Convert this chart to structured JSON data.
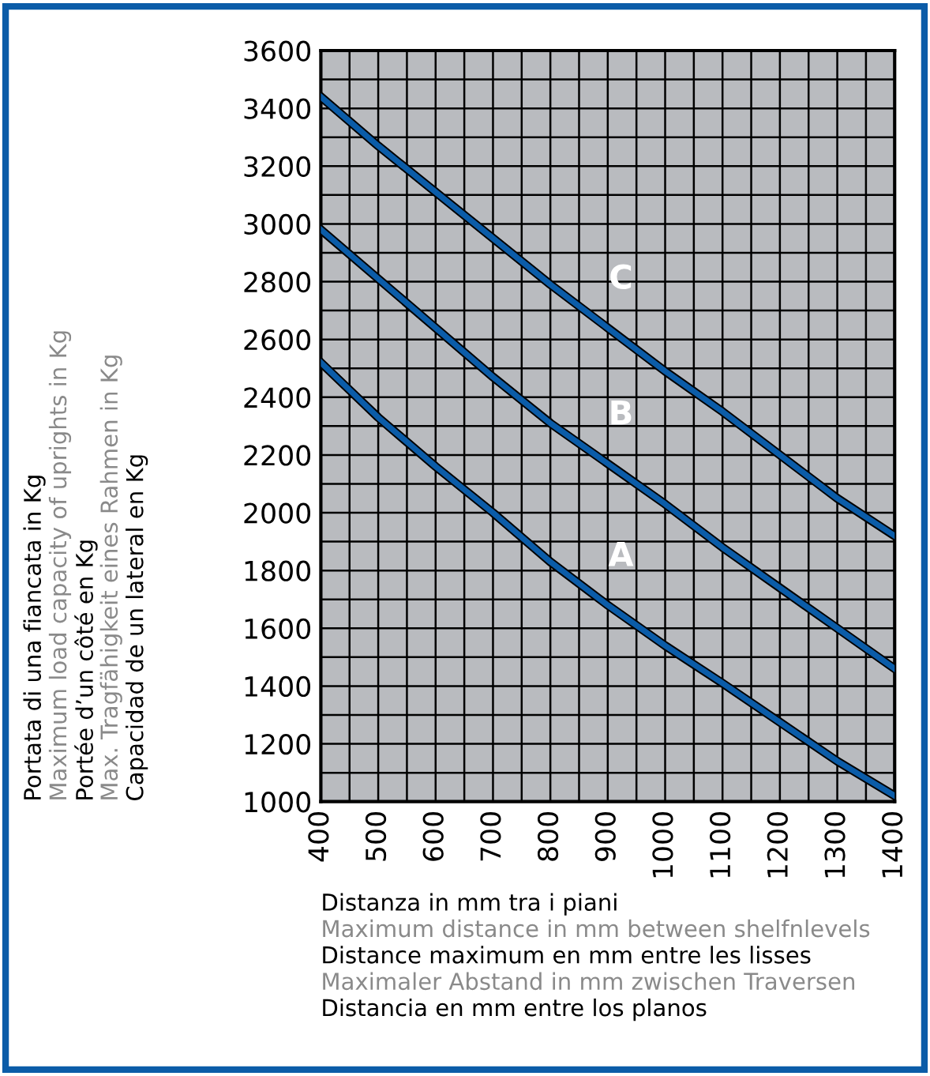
{
  "chart_data": {
    "type": "line",
    "xlabel": "Distanza in mm tra i piani\nMaximum distance in mm between shelfnlevels\nDistance maximum en mm entre les lisses\nMaximaler Abstand in mm zwischen Traversen\nDistancia en mm entre los planos",
    "ylabel": "Portata di una fiancata in Kg\nMaximum load capacity of uprights in Kg\nPortée d’un côté en Kg\nMax. Tragfähigkeit eines Rahmen in Kg\nCapacidad de un lateral en Kg",
    "x": [
      400,
      500,
      600,
      700,
      800,
      900,
      1000,
      1100,
      1200,
      1300,
      1400
    ],
    "series": [
      {
        "name": "A",
        "color": "#0b5ca8",
        "values": [
          2520,
          2330,
          2160,
          2000,
          1830,
          1680,
          1540,
          1410,
          1275,
          1140,
          1020
        ]
      },
      {
        "name": "B",
        "color": "#0b5ca8",
        "values": [
          2980,
          2810,
          2640,
          2470,
          2310,
          2170,
          2030,
          1880,
          1740,
          1600,
          1460
        ]
      },
      {
        "name": "C",
        "color": "#0b5ca8",
        "values": [
          3440,
          3270,
          3110,
          2950,
          2790,
          2640,
          2490,
          2350,
          2200,
          2050,
          1920
        ]
      }
    ],
    "xlim": [
      400,
      1400
    ],
    "ylim": [
      1000,
      3600
    ],
    "xticks": [
      400,
      {
        "value": 450,
        "label": null
      },
      500,
      {
        "value": 550,
        "label": null
      },
      600,
      {
        "value": 650,
        "label": null
      },
      700,
      {
        "value": 750,
        "label": null
      },
      800,
      {
        "value": 850,
        "label": null
      },
      900,
      {
        "value": 950,
        "label": null
      },
      1000,
      {
        "value": 1050,
        "label": null
      },
      1100,
      {
        "value": 1150,
        "label": null
      },
      1200,
      {
        "value": 1250,
        "label": null
      },
      1300,
      {
        "value": 1350,
        "label": null
      },
      1400
    ],
    "yticks": [
      1000,
      {
        "value": 1100,
        "label": null
      },
      1200,
      {
        "value": 1300,
        "label": null
      },
      1400,
      {
        "value": 1500,
        "label": null
      },
      1600,
      {
        "value": 1700,
        "label": null
      },
      1800,
      {
        "value": 1900,
        "label": null
      },
      2000,
      {
        "value": 2100,
        "label": null
      },
      2200,
      {
        "value": 2300,
        "label": null
      },
      2400,
      {
        "value": 2500,
        "label": null
      },
      2600,
      {
        "value": 2700,
        "label": null
      },
      2800,
      {
        "value": 2900,
        "label": null
      },
      3000,
      {
        "value": 3100,
        "label": null
      },
      3200,
      {
        "value": 3300,
        "label": null
      },
      3400,
      {
        "value": 3500,
        "label": null
      },
      3600
    ],
    "grid": true,
    "legend": false,
    "marker": "none",
    "line_style": "solid"
  }
}
